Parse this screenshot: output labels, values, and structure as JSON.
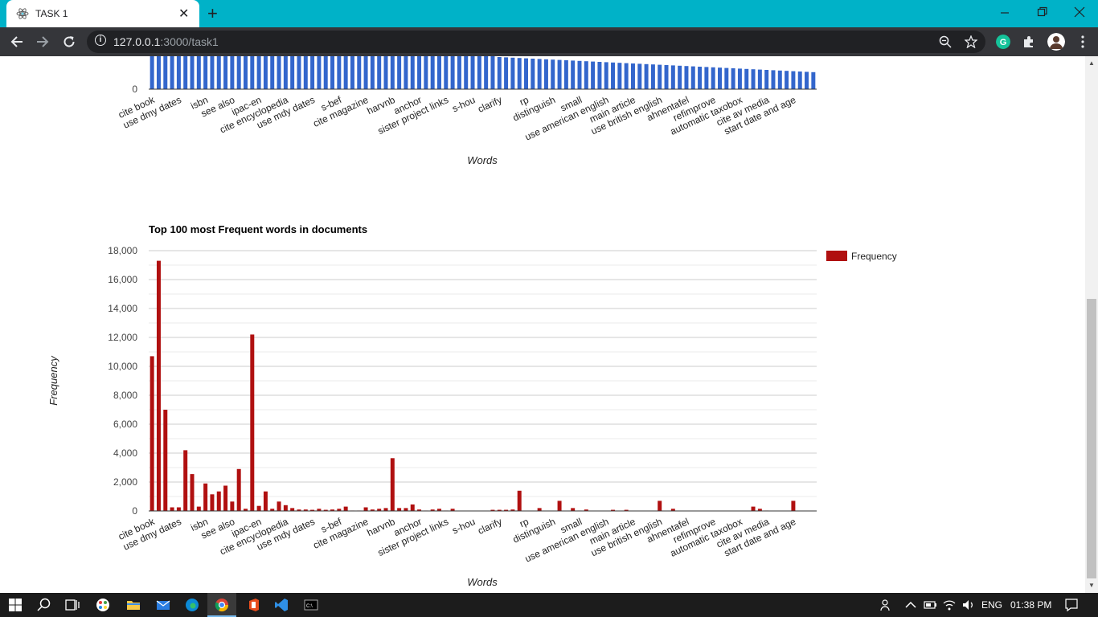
{
  "browser": {
    "tab_title": "TASK 1",
    "url_host": "127.0.0.1",
    "url_path": ":3000/task1",
    "new_tab_symbol": "+",
    "tab_close_symbol": "✕"
  },
  "upper_chart": {
    "zero_label": "0",
    "xlabel": "Words",
    "bar_color": "#3366cc",
    "values": [
      1200,
      1200,
      1200,
      1200,
      1200,
      1200,
      1200,
      1200,
      1200,
      1200,
      1200,
      1200,
      1200,
      1200,
      1200,
      1200,
      1200,
      1200,
      1200,
      1200,
      1200,
      1200,
      1200,
      1200,
      1200,
      1200,
      1200,
      1200,
      1200,
      1200,
      1200,
      1200,
      1200,
      1200,
      1200,
      1200,
      1200,
      1200,
      1200,
      1200,
      1200,
      1200,
      1180,
      1180,
      1160,
      1150,
      1150,
      1100,
      1080,
      1060,
      1060,
      1040,
      1000,
      990,
      980,
      970,
      960,
      950,
      940,
      930,
      920,
      910,
      900,
      890,
      880,
      870,
      860,
      850,
      840,
      830,
      820,
      810,
      800,
      790,
      780,
      770,
      760,
      750,
      740,
      730,
      720,
      710,
      700,
      690,
      680,
      670,
      660,
      650,
      640,
      630,
      620,
      610,
      600,
      590,
      580,
      570,
      560,
      550,
      540,
      530
    ]
  },
  "chart_data": {
    "type": "bar",
    "title": "Top 100 most Frequent words in documents",
    "xlabel": "Words",
    "ylabel": "Frequency",
    "ylim": [
      0,
      18000
    ],
    "y_ticks": [
      "0",
      "2,000",
      "4,000",
      "6,000",
      "8,000",
      "10,000",
      "12,000",
      "14,000",
      "16,000",
      "18,000"
    ],
    "tick_labels": [
      "cite book",
      "use dmy dates",
      "isbn",
      "see also",
      "ipac-en",
      "cite encyclopedia",
      "use mdy dates",
      "s-bef",
      "cite magazine",
      "harvnb",
      "anchor",
      "sister project links",
      "s-hou",
      "clarify",
      "rp",
      "distinguish",
      "small",
      "use american english",
      "main article",
      "use british english",
      "ahnentafel",
      "refimprove",
      "automatic taxobox",
      "cite av media",
      "start date and age"
    ],
    "legend": "Frequency",
    "legend_position": "right",
    "grid": true,
    "color": "#b01010",
    "series": [
      {
        "name": "Frequency",
        "values": [
          10700,
          17300,
          7000,
          250,
          250,
          4200,
          2550,
          300,
          1900,
          1150,
          1350,
          1750,
          650,
          2900,
          150,
          12200,
          350,
          1350,
          150,
          650,
          400,
          200,
          100,
          100,
          80,
          150,
          80,
          100,
          150,
          300,
          30,
          30,
          250,
          100,
          150,
          200,
          3650,
          200,
          200,
          450,
          100,
          30,
          100,
          150,
          30,
          150,
          20,
          20,
          20,
          20,
          20,
          80,
          80,
          80,
          100,
          1400,
          20,
          20,
          200,
          20,
          20,
          700,
          20,
          200,
          30,
          100,
          20,
          20,
          20,
          80,
          20,
          80,
          20,
          20,
          20,
          20,
          700,
          20,
          150,
          20,
          20,
          20,
          20,
          20,
          20,
          20,
          20,
          20,
          20,
          20,
          300,
          150,
          30,
          20,
          20,
          20,
          700,
          20,
          20,
          20
        ]
      }
    ]
  }
}
